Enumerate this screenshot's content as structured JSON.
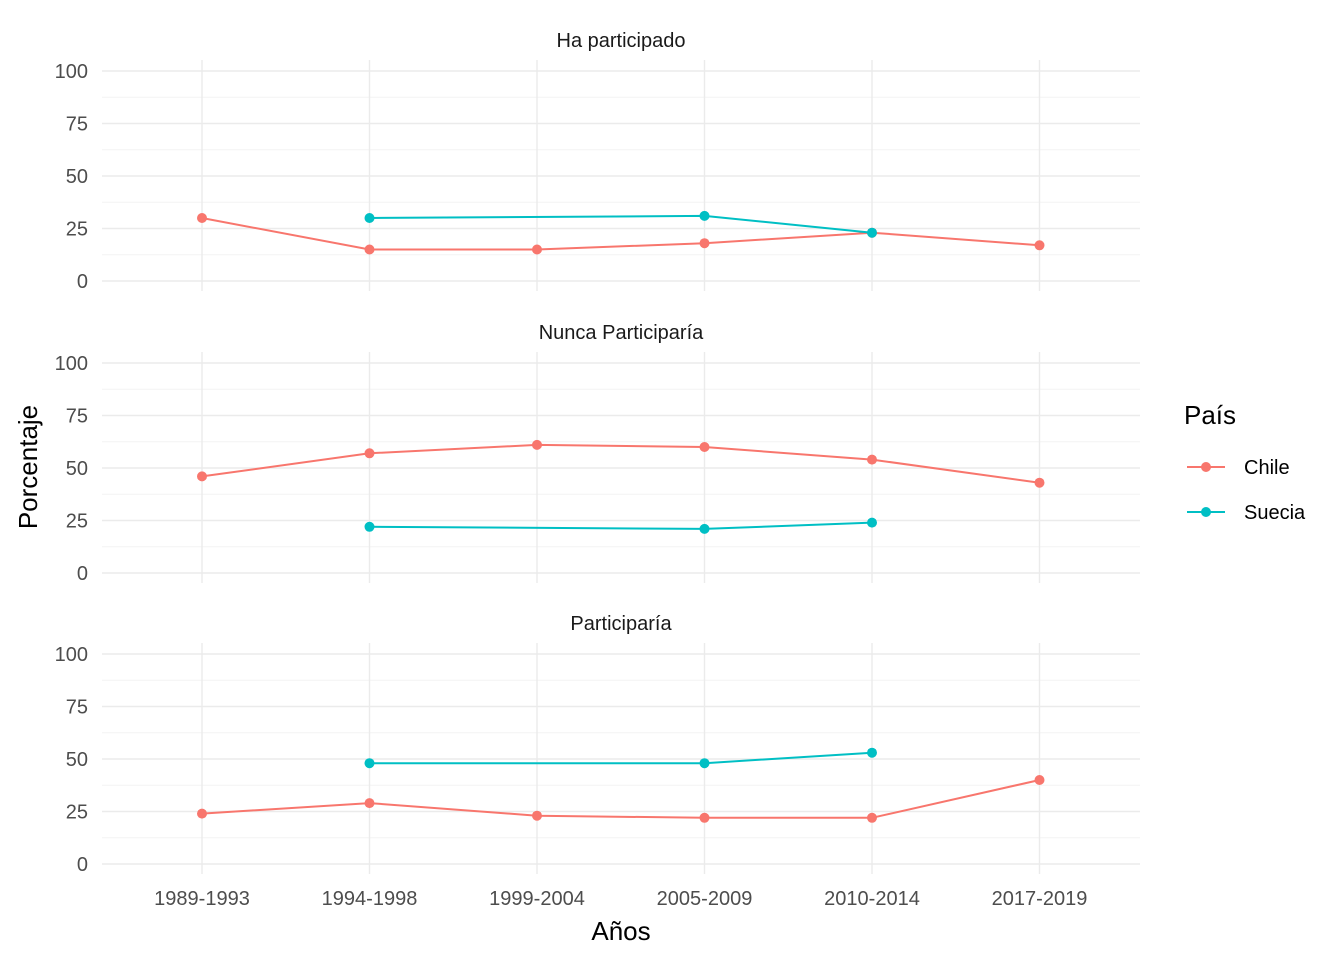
{
  "chart_data": {
    "type": "line",
    "xlabel": "Años",
    "ylabel": "Porcentaje",
    "categories": [
      "1989-1993",
      "1994-1998",
      "1999-2004",
      "2005-2009",
      "2010-2014",
      "2017-2019"
    ],
    "ylim": [
      0,
      100
    ],
    "yticks": [
      0,
      25,
      50,
      75,
      100
    ],
    "grid": true,
    "legend": {
      "title": "País",
      "position": "right",
      "entries": [
        {
          "name": "Chile",
          "color": "#F8766D"
        },
        {
          "name": "Suecia",
          "color": "#00BFC4"
        }
      ]
    },
    "panels": [
      {
        "title": "Ha participado",
        "series": [
          {
            "name": "Chile",
            "color": "#F8766D",
            "values": [
              30,
              15,
              15,
              18,
              23,
              17
            ]
          },
          {
            "name": "Suecia",
            "color": "#00BFC4",
            "values": [
              null,
              30,
              null,
              31,
              23,
              null
            ]
          }
        ]
      },
      {
        "title": "Nunca Participaría",
        "series": [
          {
            "name": "Chile",
            "color": "#F8766D",
            "values": [
              46,
              57,
              61,
              60,
              54,
              43
            ]
          },
          {
            "name": "Suecia",
            "color": "#00BFC4",
            "values": [
              null,
              22,
              null,
              21,
              24,
              null
            ]
          }
        ]
      },
      {
        "title": "Participaría",
        "series": [
          {
            "name": "Chile",
            "color": "#F8766D",
            "values": [
              24,
              29,
              23,
              22,
              22,
              40
            ]
          },
          {
            "name": "Suecia",
            "color": "#00BFC4",
            "values": [
              null,
              48,
              null,
              48,
              53,
              null
            ]
          }
        ]
      }
    ]
  }
}
